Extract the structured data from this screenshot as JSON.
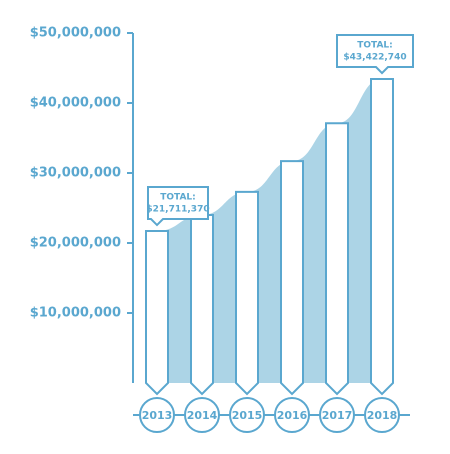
{
  "chart_data": {
    "type": "bar",
    "categories": [
      "2013",
      "2014",
      "2015",
      "2016",
      "2017",
      "2018"
    ],
    "values": [
      21711370,
      24000000,
      27300000,
      31700000,
      37100000,
      43422740
    ],
    "color": "#5aa7cf",
    "area_color": "#acd4e6",
    "ylim": [
      0,
      50000000
    ],
    "yticks": [
      {
        "value": 10000000,
        "label": "$10,000,000"
      },
      {
        "value": 20000000,
        "label": "$20,000,000"
      },
      {
        "value": 30000000,
        "label": "$30,000,000"
      },
      {
        "value": 40000000,
        "label": "$40,000,000"
      },
      {
        "value": 50000000,
        "label": "$50,000,000"
      }
    ],
    "annotations": [
      [
        "TOTAL:",
        "$21,711,370"
      ],
      [
        "TOTAL:",
        "$43,422,740"
      ]
    ]
  }
}
